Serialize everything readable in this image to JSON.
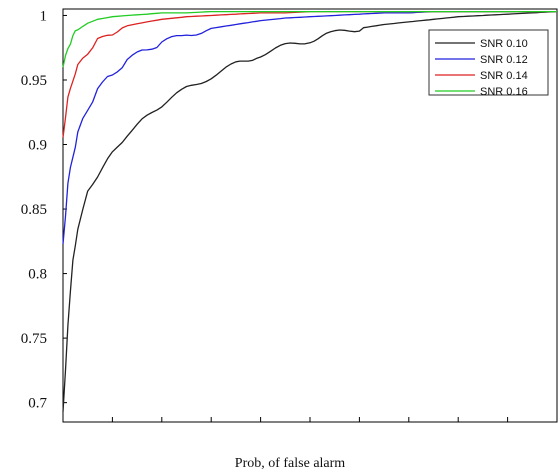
{
  "chart_data": {
    "type": "line",
    "xlabel": "Prob, of false alarm",
    "ylabel": "",
    "title": "",
    "xlim": [
      0,
      1
    ],
    "ylim": [
      0.685,
      1.005
    ],
    "x_ticks_count": 10,
    "y_ticks": [
      {
        "value": 1.0,
        "label": "1"
      },
      {
        "value": 0.95,
        "label": "0.95"
      },
      {
        "value": 0.9,
        "label": "0.9"
      },
      {
        "value": 0.85,
        "label": "0.85"
      },
      {
        "value": 0.8,
        "label": "0.8"
      },
      {
        "value": 0.75,
        "label": "0.75"
      },
      {
        "value": 0.7,
        "label": "0.7"
      }
    ],
    "legend_position": "top-right",
    "grid": false,
    "series": [
      {
        "name": "SNR 0.10",
        "color": "#222222",
        "x": [
          0,
          0.01,
          0.02,
          0.03,
          0.05,
          0.07,
          0.1,
          0.13,
          0.17,
          0.2,
          0.25,
          0.3,
          0.35,
          0.4,
          0.45,
          0.5,
          0.55,
          0.6,
          0.65,
          0.7,
          0.75,
          0.8,
          0.85,
          0.9,
          0.95,
          1.0
        ],
        "y": [
          0.693,
          0.76,
          0.81,
          0.835,
          0.863,
          0.876,
          0.893,
          0.908,
          0.921,
          0.931,
          0.943,
          0.953,
          0.962,
          0.97,
          0.976,
          0.981,
          0.986,
          0.99,
          0.993,
          0.995,
          0.997,
          0.999,
          1.0,
          1.001,
          1.002,
          1.003
        ]
      },
      {
        "name": "SNR 0.12",
        "color": "#2222dd",
        "x": [
          0,
          0.01,
          0.02,
          0.03,
          0.05,
          0.07,
          0.1,
          0.13,
          0.17,
          0.2,
          0.25,
          0.3,
          0.35,
          0.4,
          0.45,
          0.5,
          0.55,
          0.6,
          0.65,
          0.7,
          0.75,
          0.8,
          0.85,
          0.9,
          0.95,
          1.0
        ],
        "y": [
          0.825,
          0.868,
          0.892,
          0.908,
          0.928,
          0.942,
          0.955,
          0.965,
          0.974,
          0.979,
          0.985,
          0.99,
          0.993,
          0.996,
          0.998,
          0.999,
          1.0,
          1.001,
          1.002,
          1.002,
          1.003,
          1.003,
          1.003,
          1.003,
          1.003,
          1.003
        ]
      },
      {
        "name": "SNR 0.14",
        "color": "#dd2222",
        "x": [
          0,
          0.01,
          0.02,
          0.03,
          0.05,
          0.07,
          0.1,
          0.13,
          0.17,
          0.2,
          0.25,
          0.3,
          0.35,
          0.4,
          0.45,
          0.5,
          0.55,
          0.6,
          0.65,
          0.7,
          0.75,
          0.8,
          0.85,
          0.9,
          0.95,
          1.0
        ],
        "y": [
          0.907,
          0.935,
          0.951,
          0.96,
          0.972,
          0.98,
          0.987,
          0.992,
          0.995,
          0.997,
          0.999,
          1.0,
          1.001,
          1.002,
          1.002,
          1.003,
          1.003,
          1.003,
          1.003,
          1.003,
          1.003,
          1.003,
          1.003,
          1.003,
          1.003,
          1.003
        ]
      },
      {
        "name": "SNR 0.16",
        "color": "#22cc22",
        "x": [
          0,
          0.01,
          0.02,
          0.03,
          0.05,
          0.07,
          0.1,
          0.13,
          0.17,
          0.2,
          0.25,
          0.3,
          0.35,
          0.4,
          0.45,
          0.5,
          0.55,
          0.6,
          0.65,
          0.7,
          0.75,
          0.8,
          0.85,
          0.9,
          0.95,
          1.0
        ],
        "y": [
          0.959,
          0.975,
          0.984,
          0.989,
          0.994,
          0.997,
          0.999,
          1.0,
          1.001,
          1.002,
          1.002,
          1.003,
          1.003,
          1.003,
          1.003,
          1.003,
          1.003,
          1.003,
          1.003,
          1.003,
          1.003,
          1.003,
          1.003,
          1.003,
          1.003,
          1.003
        ]
      }
    ]
  }
}
